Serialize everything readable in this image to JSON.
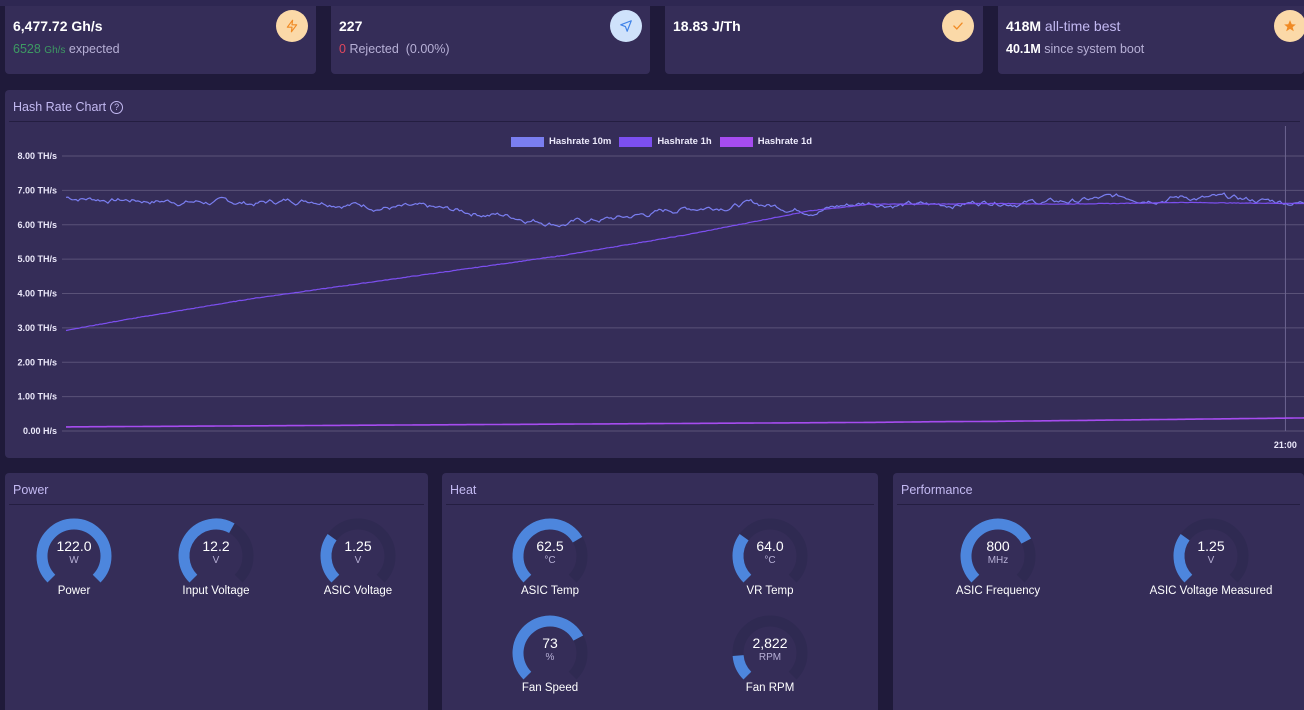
{
  "stats": {
    "hashrate": {
      "value": "6,477.72",
      "unit": "Gh/s",
      "expected_value": "6528",
      "expected_unit": "Gh/s",
      "expected_label": "expected",
      "icon": "lightning-icon"
    },
    "shares": {
      "value": "227",
      "rejected_count": "0",
      "rejected_label": "Rejected",
      "rejected_pct": "(0.00%)",
      "icon": "send-icon"
    },
    "efficiency": {
      "value": "18.83",
      "unit": "J/Th",
      "icon": "check-icon"
    },
    "best_difficulty": {
      "all_time_value": "418M",
      "all_time_label": "all-time best",
      "since_boot_value": "40.1M",
      "since_boot_label": "since system boot",
      "icon": "star-icon"
    }
  },
  "hashrate_card": {
    "title": "Hash Rate Chart",
    "help_icon": "?"
  },
  "chart_data": {
    "type": "line",
    "title": "Hash Rate Chart",
    "xlabel": "",
    "ylabel": "",
    "ylim": [
      0,
      8
    ],
    "y_unit": "TH/s",
    "y_ticks": [
      "0.00 H/s",
      "1.00 TH/s",
      "2.00 TH/s",
      "3.00 TH/s",
      "4.00 TH/s",
      "5.00 TH/s",
      "6.00 TH/s",
      "7.00 TH/s",
      "8.00 TH/s"
    ],
    "x_ticks": [
      "21:00"
    ],
    "x_tick_positions": [
      0.985
    ],
    "grid": true,
    "legend_position": "top-center",
    "x": [
      0,
      0.05,
      0.1,
      0.15,
      0.2,
      0.25,
      0.3,
      0.35,
      0.4,
      0.45,
      0.5,
      0.55,
      0.6,
      0.65,
      0.7,
      0.75,
      0.8,
      0.85,
      0.9,
      0.95,
      1.0
    ],
    "series": [
      {
        "name": "Hashrate 10m",
        "color": "#7a7ef0",
        "values": [
          6.8,
          6.72,
          6.68,
          6.62,
          6.75,
          6.55,
          6.42,
          6.3,
          6.05,
          6.2,
          6.48,
          6.62,
          6.45,
          6.65,
          6.55,
          6.7,
          6.65,
          6.78,
          6.82,
          6.72,
          6.65
        ]
      },
      {
        "name": "Hashrate 1h",
        "color": "#7c4ff0",
        "values": [
          2.93,
          3.25,
          3.55,
          3.85,
          4.1,
          4.35,
          4.6,
          4.85,
          5.1,
          5.4,
          5.7,
          6.05,
          6.4,
          6.6,
          6.6,
          6.62,
          6.6,
          6.62,
          6.65,
          6.63,
          6.62
        ]
      },
      {
        "name": "Hashrate 1d",
        "color": "#a64cf0",
        "values": [
          0.12,
          0.13,
          0.14,
          0.15,
          0.16,
          0.17,
          0.18,
          0.19,
          0.2,
          0.21,
          0.22,
          0.23,
          0.24,
          0.25,
          0.27,
          0.28,
          0.3,
          0.32,
          0.34,
          0.36,
          0.38
        ]
      }
    ]
  },
  "panels": [
    {
      "title": "Power",
      "gauges": [
        {
          "value": "122.0",
          "unit": "W",
          "label": "Power",
          "fraction": 1.0
        },
        {
          "value": "12.2",
          "unit": "V",
          "label": "Input Voltage",
          "fraction": 0.61
        },
        {
          "value": "1.25",
          "unit": "V",
          "label": "ASIC Voltage",
          "fraction": 0.3
        }
      ]
    },
    {
      "title": "Heat",
      "gauges": [
        {
          "value": "62.5",
          "unit": "°C",
          "label": "ASIC Temp",
          "fraction": 0.72
        },
        {
          "value": "64.0",
          "unit": "°C",
          "label": "VR Temp",
          "fraction": 0.3
        },
        {
          "value": "73",
          "unit": "%",
          "label": "Fan Speed",
          "fraction": 0.73
        },
        {
          "value": "2,822",
          "unit": "RPM",
          "label": "Fan RPM",
          "fraction": 0.15
        }
      ]
    },
    {
      "title": "Performance",
      "gauges": [
        {
          "value": "800",
          "unit": "MHz",
          "label": "ASIC Frequency",
          "fraction": 0.73
        },
        {
          "value": "1.25",
          "unit": "V",
          "label": "ASIC Voltage Measured",
          "fraction": 0.3
        }
      ]
    }
  ],
  "colors": {
    "gauge_fill": "#4d86dd",
    "gauge_track": "#2f2a52",
    "accent_orange": "#f08a24",
    "accent_blue": "#3f82e8"
  }
}
